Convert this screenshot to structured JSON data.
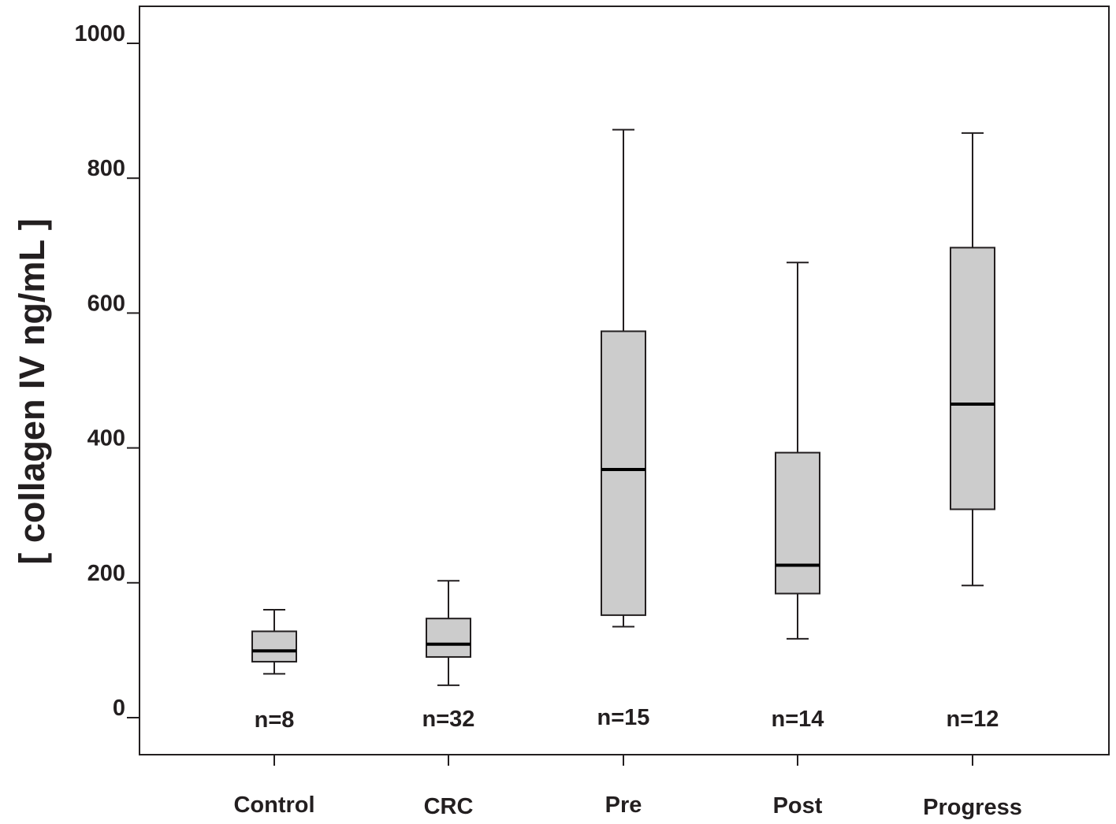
{
  "chart_data": {
    "type": "boxplot",
    "title": "",
    "xlabel": "",
    "ylabel": "[ collagen IV ng/mL ]",
    "ylim": [
      0,
      1000
    ],
    "yticks": [
      0,
      200,
      400,
      600,
      800,
      1000
    ],
    "ytick_labels": [
      "0",
      "200",
      "400",
      "600",
      "800",
      "1000"
    ],
    "grid": false,
    "colors": {
      "box_fill": "#cccccc",
      "stroke": "#231f20"
    },
    "categories": [
      "Control",
      "CRC",
      "Pre",
      "Post",
      "Progress"
    ],
    "boxes": [
      {
        "category": "Control",
        "n_label": "n=8",
        "whisker_low": 65,
        "q1": 83,
        "median": 99,
        "q3": 128,
        "whisker_high": 160
      },
      {
        "category": "CRC",
        "n_label": "n=32",
        "whisker_low": 48,
        "q1": 90,
        "median": 109,
        "q3": 147,
        "whisker_high": 203
      },
      {
        "category": "Pre",
        "n_label": "n=15",
        "whisker_low": 135,
        "q1": 152,
        "median": 368,
        "q3": 573,
        "whisker_high": 872
      },
      {
        "category": "Post",
        "n_label": "n=14",
        "whisker_low": 117,
        "q1": 184,
        "median": 226,
        "q3": 393,
        "whisker_high": 675
      },
      {
        "category": "Progress",
        "n_label": "n=12",
        "whisker_low": 196,
        "q1": 309,
        "median": 465,
        "q3": 697,
        "whisker_high": 867
      }
    ]
  }
}
